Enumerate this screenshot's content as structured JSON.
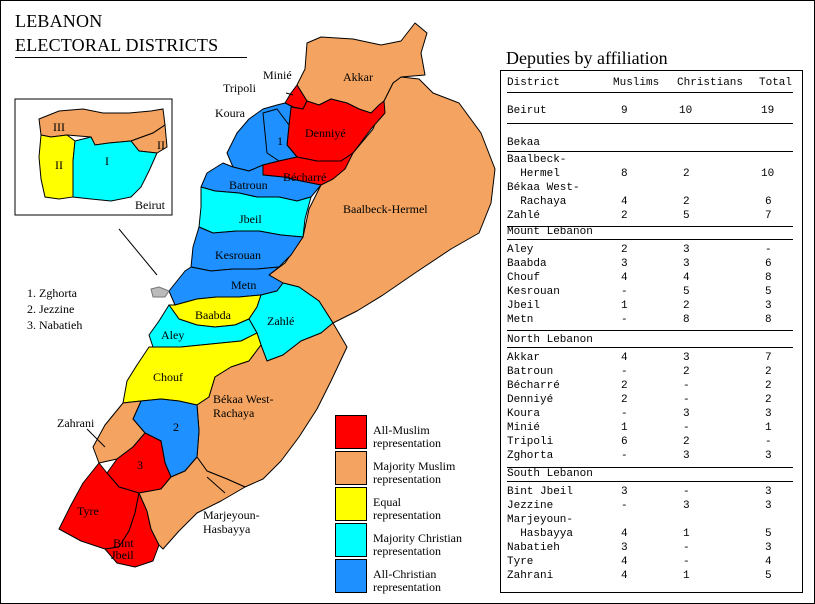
{
  "title": {
    "line1": "LEBANON",
    "line2": "ELECTORAL DISTRICTS"
  },
  "map_labels": {
    "akkar": "Akkar",
    "minie": "Minié",
    "tripoli": "Tripoli",
    "koura": "Koura",
    "denniye": "Denniyé",
    "one": "1",
    "becharre": "Bécharré",
    "batroun": "Batroun",
    "jbeil": "Jbeil",
    "kesrouan": "Kesrouan",
    "metn": "Metn",
    "baalbeck": "Baalbeck-Hermel",
    "baabda": "Baabda",
    "zahle": "Zahlé",
    "aley": "Aley",
    "chouf": "Chouf",
    "bekaa_west_1": "Békaa West-",
    "bekaa_west_2": "Rachaya",
    "two": "2",
    "three": "3",
    "zahrani": "Zahrani",
    "tyre": "Tyre",
    "bint_1": "Bint",
    "bint_2": "Jbeil",
    "marj_1": "Marjeyoun-",
    "marj_2": "Hasbayya"
  },
  "inset_labels": {
    "iii": "III",
    "ii_right": "II",
    "ii_left": "II",
    "i": "I",
    "beirut": "Beirut"
  },
  "notes": [
    "1. Zghorta",
    "2. Jezzine",
    "3. Nabatieh"
  ],
  "legend": [
    {
      "color": "#ff0000",
      "line1": "All-Muslim",
      "line2": "representation"
    },
    {
      "color": "#f4a460",
      "line1": "Majority Muslim",
      "line2": "representation"
    },
    {
      "color": "#ffff00",
      "line1": "Equal",
      "line2": "representation"
    },
    {
      "color": "#00ffff",
      "line1": "Majority Christian",
      "line2": "representation"
    },
    {
      "color": "#1e90ff",
      "line1": "All-Christian",
      "line2": "representation"
    }
  ],
  "colors": {
    "all_muslim": "#ff0000",
    "majority_muslim": "#f4a460",
    "equal": "#ffff00",
    "majority_christian": "#00ffff",
    "all_christian": "#1e90ff",
    "beirut": "#bbbbbb"
  },
  "table": {
    "title": "Deputies by affiliation",
    "header": {
      "district": "District",
      "muslims": "Muslims",
      "christians": "Christians",
      "total": "Total"
    },
    "beirut": {
      "district": "Beirut",
      "muslims": "9",
      "christians": "10",
      "total": "19"
    },
    "bekaa": {
      "heading": "Bekaa",
      "rows": [
        {
          "district1": "Baalbeck-",
          "district2": "  Hermel",
          "muslims": "8",
          "christians": "2",
          "total": "10"
        },
        {
          "district1": "Békaa West-",
          "district2": "  Rachaya",
          "muslims": "4",
          "christians": "2",
          "total": "6"
        },
        {
          "district": "Zahlé",
          "muslims": "2",
          "christians": "5",
          "total": "7"
        }
      ]
    },
    "mount": {
      "heading": "Mount Lebanon",
      "rows": [
        {
          "district": "Aley",
          "muslims": "2",
          "christians": "3",
          "total": "-"
        },
        {
          "district": "Baabda",
          "muslims": "3",
          "christians": "3",
          "total": "6"
        },
        {
          "district": "Chouf",
          "muslims": "4",
          "christians": "4",
          "total": "8"
        },
        {
          "district": "Kesrouan",
          "muslims": "-",
          "christians": "5",
          "total": "5"
        },
        {
          "district": "Jbeil",
          "muslims": "1",
          "christians": "2",
          "total": "3"
        },
        {
          "district": "Metn",
          "muslims": "-",
          "christians": "8",
          "total": "8"
        }
      ]
    },
    "north": {
      "heading": "North Lebanon",
      "rows": [
        {
          "district": "Akkar",
          "muslims": "4",
          "christians": "3",
          "total": "7"
        },
        {
          "district": "Batroun",
          "muslims": "-",
          "christians": "2",
          "total": "2"
        },
        {
          "district": "Bécharré",
          "muslims": "2",
          "christians": "-",
          "total": "2"
        },
        {
          "district": "Denniyé",
          "muslims": "2",
          "christians": "-",
          "total": "2"
        },
        {
          "district": "Koura",
          "muslims": "-",
          "christians": "3",
          "total": "3"
        },
        {
          "district": "Minié",
          "muslims": "1",
          "christians": "-",
          "total": "1"
        },
        {
          "district": "Tripoli",
          "muslims": "6",
          "christians": "2",
          "total": "-"
        },
        {
          "district": "Zghorta",
          "muslims": "-",
          "christians": "3",
          "total": "3"
        }
      ]
    },
    "south": {
      "heading": "South Lebanon",
      "rows": [
        {
          "district": "Bint Jbeil",
          "muslims": "3",
          "christians": "-",
          "total": "3"
        },
        {
          "district": "Jezzine",
          "muslims": "-",
          "christians": "3",
          "total": "3"
        },
        {
          "district1": "Marjeyoun-",
          "district2": "  Hasbayya",
          "muslims": "4",
          "christians": "1",
          "total": "5"
        },
        {
          "district": "Nabatieh",
          "muslims": "3",
          "christians": "-",
          "total": "3"
        },
        {
          "district": "Tyre",
          "muslims": "4",
          "christians": "-",
          "total": "4"
        },
        {
          "district": "Zahrani",
          "muslims": "4",
          "christians": "1",
          "total": "5"
        }
      ]
    }
  }
}
